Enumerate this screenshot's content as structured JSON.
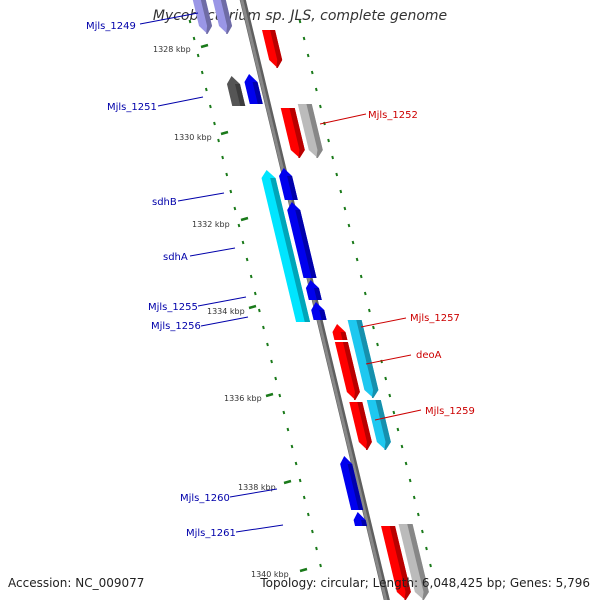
{
  "title": "Mycobacterium sp. JLS, complete genome",
  "accession_text": "Accession: NC_009077",
  "topology_text": "Topology: circular; Length: 6,048,425 bp; Genes: 5,796",
  "colors": {
    "backbone": "#888888",
    "tick": "#1a7a1a",
    "forward_label": "#cc0000",
    "reverse_label": "#0000aa",
    "red": "#ff0000",
    "blue": "#0000ee",
    "cyan": "#00e5ff",
    "light_blue": "#1ec8f0",
    "gray": "#bbbbbb",
    "dark_gray": "#555555",
    "lavender": "#9a96e6"
  },
  "kbp_ticks": [
    "1328 kbp",
    "1330 kbp",
    "1332 kbp",
    "1334 kbp",
    "1336 kbp",
    "1338 kbp",
    "1340 kbp"
  ],
  "gene_labels": [
    {
      "text": "Mjls_1249",
      "strand": "reverse"
    },
    {
      "text": "Mjls_1251",
      "strand": "reverse"
    },
    {
      "text": "Mjls_1252",
      "strand": "forward"
    },
    {
      "text": "sdhB",
      "strand": "reverse"
    },
    {
      "text": "sdhA",
      "strand": "reverse"
    },
    {
      "text": "Mjls_1255",
      "strand": "reverse"
    },
    {
      "text": "Mjls_1256",
      "strand": "reverse"
    },
    {
      "text": "Mjls_1257",
      "strand": "forward"
    },
    {
      "text": "deoA",
      "strand": "forward"
    },
    {
      "text": "Mjls_1259",
      "strand": "forward"
    },
    {
      "text": "Mjls_1260",
      "strand": "reverse"
    },
    {
      "text": "Mjls_1261",
      "strand": "reverse"
    }
  ]
}
